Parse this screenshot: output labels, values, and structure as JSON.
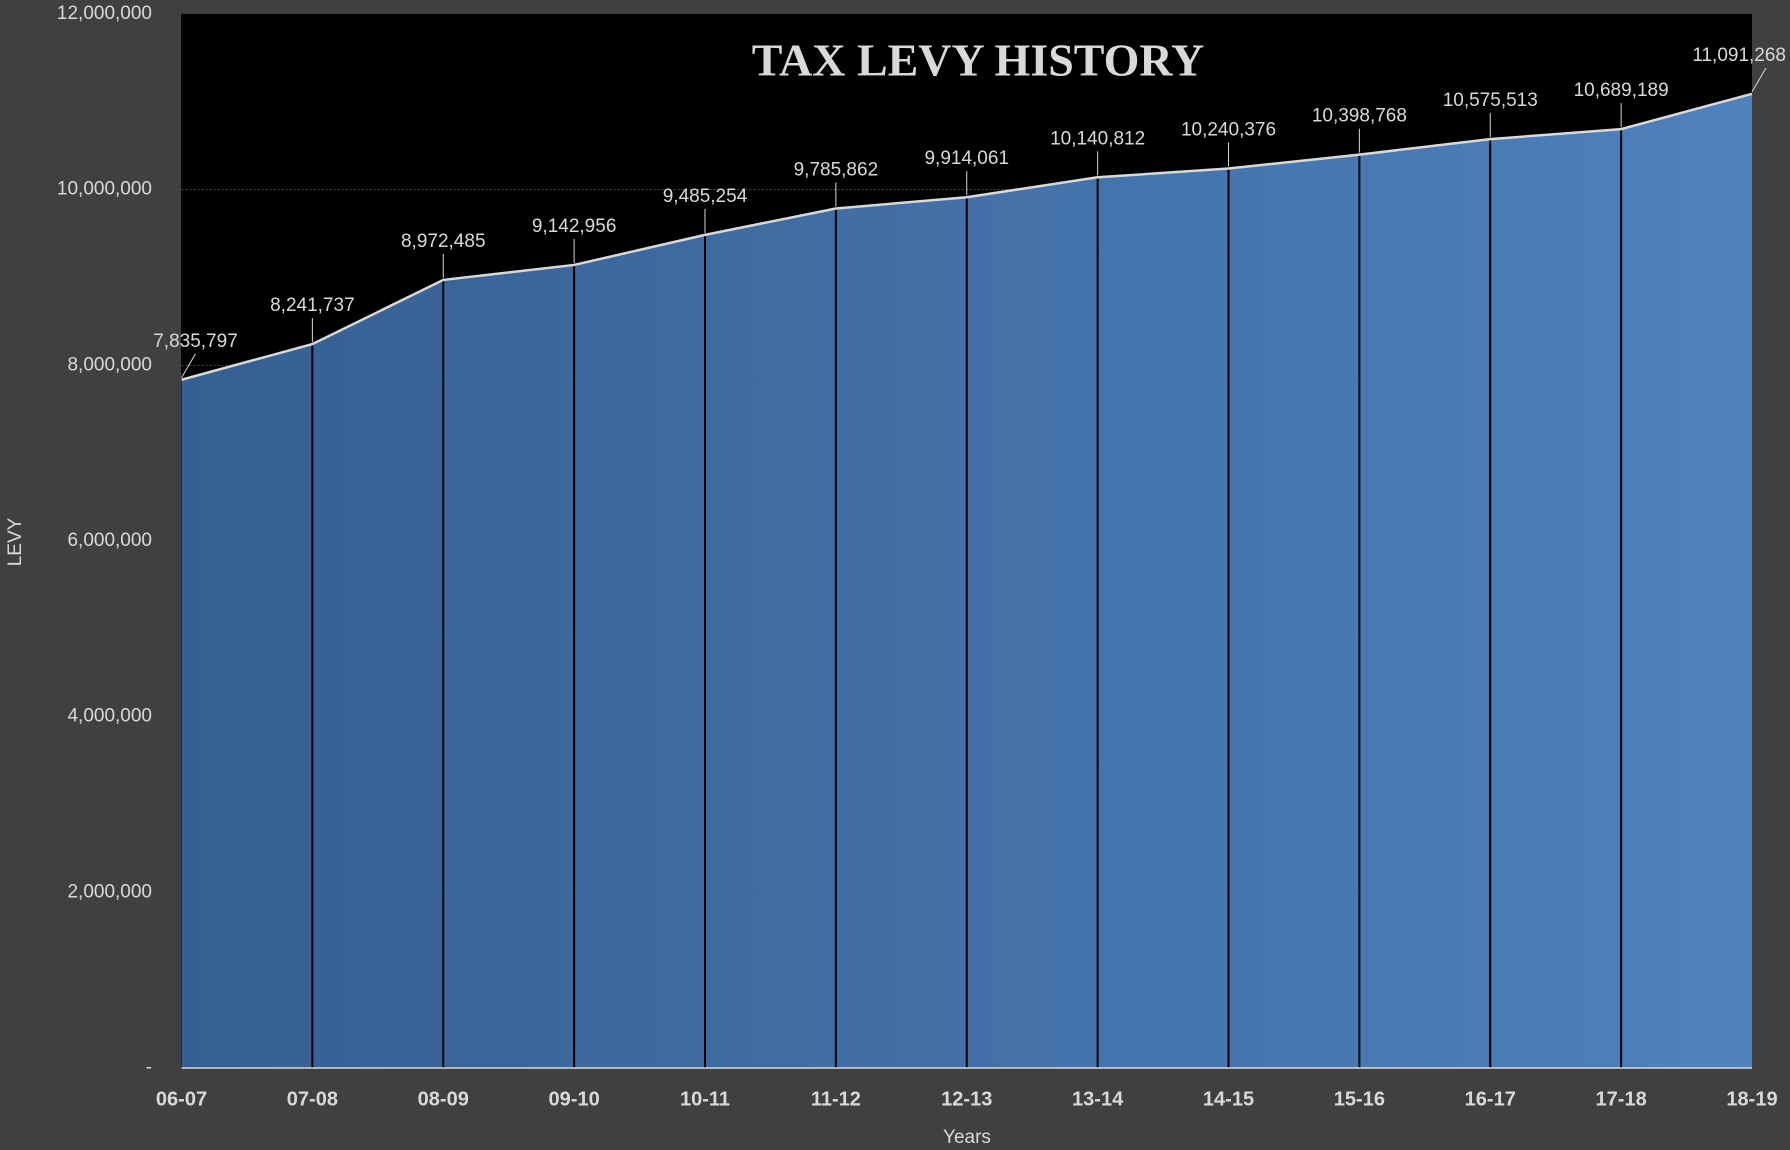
{
  "chart_data": {
    "type": "area",
    "title": "TAX LEVY HISTORY",
    "x_label": "Years",
    "y_label": "LEVY",
    "categories": [
      "06-07",
      "07-08",
      "08-09",
      "09-10",
      "10-11",
      "11-12",
      "12-13",
      "13-14",
      "14-15",
      "15-16",
      "16-17",
      "17-18",
      "18-19"
    ],
    "values": [
      7835797,
      8241737,
      8972485,
      9142956,
      9485254,
      9785862,
      9914061,
      10140812,
      10240376,
      10398768,
      10575513,
      10689189,
      11091268
    ],
    "value_labels": [
      "7,835,797",
      "8,241,737",
      "8,972,485",
      "9,142,956",
      "9,485,254",
      "9,785,862",
      "9,914,061",
      "10,140,812",
      "10,240,376",
      "10,398,768",
      "10,575,513",
      "10,689,189",
      "11,091,268"
    ],
    "color": "#4f81bd",
    "ylim": [
      0,
      12000000
    ],
    "yticks": [
      {
        "value": 0,
        "label": "-"
      },
      {
        "value": 2000000,
        "label": "2,000,000"
      },
      {
        "value": 4000000,
        "label": "4,000,000"
      },
      {
        "value": 6000000,
        "label": "6,000,000"
      },
      {
        "value": 8000000,
        "label": "8,000,000"
      },
      {
        "value": 10000000,
        "label": "10,000,000"
      },
      {
        "value": 12000000,
        "label": "12,000,000"
      }
    ],
    "grid": true
  }
}
